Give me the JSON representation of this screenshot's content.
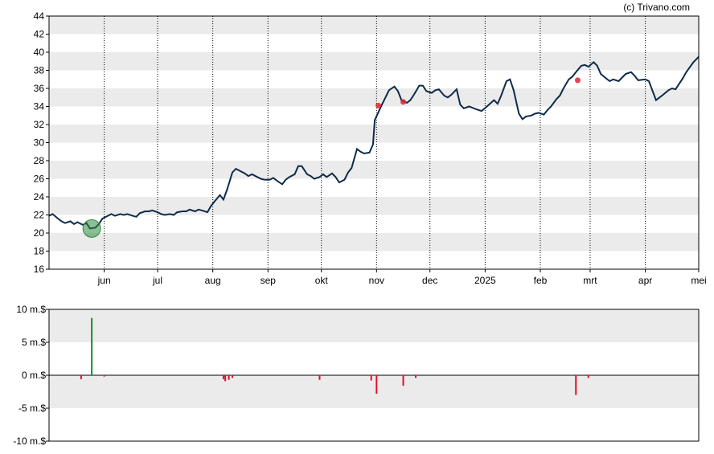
{
  "credit": "(c) Trivano.com",
  "colors": {
    "price_line": "#0d2b4a",
    "band": "#ebebeb",
    "gridline": "#000000",
    "buy_marker": "#2e8b3e",
    "sell_marker": "#e8202e",
    "positive_bar": "#1a8a2a",
    "negative_bar": "#e0102a"
  },
  "chart_data": [
    {
      "type": "line",
      "ylim": [
        16,
        44
      ],
      "y_ticks": [
        "16",
        "18",
        "20",
        "22",
        "24",
        "26",
        "28",
        "30",
        "32",
        "34",
        "36",
        "38",
        "40",
        "42",
        "44"
      ],
      "x_ticks": [
        {
          "label": "jun",
          "date": "2024-06-01"
        },
        {
          "label": "jul",
          "date": "2024-07-01"
        },
        {
          "label": "aug",
          "date": "2024-08-01"
        },
        {
          "label": "sep",
          "date": "2024-09-01"
        },
        {
          "label": "okt",
          "date": "2024-10-01"
        },
        {
          "label": "nov",
          "date": "2024-11-01"
        },
        {
          "label": "dec",
          "date": "2024-12-01"
        },
        {
          "label": "2025",
          "date": "2025-01-01"
        },
        {
          "label": "feb",
          "date": "2025-02-01"
        },
        {
          "label": "mrt",
          "date": "2025-03-01"
        },
        {
          "label": "apr",
          "date": "2025-04-01"
        },
        {
          "label": "mei",
          "date": "2025-05-01"
        }
      ],
      "xlim": [
        "2024-05-01",
        "2025-05-01"
      ],
      "grid": true,
      "series": [
        {
          "points": [
            [
              "2024-05-01",
              21.9
            ],
            [
              "2024-05-03",
              22.1
            ],
            [
              "2024-05-06",
              21.6
            ],
            [
              "2024-05-08",
              21.3
            ],
            [
              "2024-05-10",
              21.1
            ],
            [
              "2024-05-13",
              21.3
            ],
            [
              "2024-05-15",
              21.0
            ],
            [
              "2024-05-17",
              21.2
            ],
            [
              "2024-05-20",
              20.9
            ],
            [
              "2024-05-22",
              21.1
            ],
            [
              "2024-05-24",
              20.5
            ],
            [
              "2024-05-27",
              20.6
            ],
            [
              "2024-05-29",
              21.0
            ],
            [
              "2024-05-31",
              21.6
            ],
            [
              "2024-06-03",
              21.9
            ],
            [
              "2024-06-05",
              22.1
            ],
            [
              "2024-06-07",
              21.9
            ],
            [
              "2024-06-10",
              22.1
            ],
            [
              "2024-06-12",
              22.0
            ],
            [
              "2024-06-14",
              22.1
            ],
            [
              "2024-06-17",
              21.9
            ],
            [
              "2024-06-19",
              21.8
            ],
            [
              "2024-06-21",
              22.2
            ],
            [
              "2024-06-24",
              22.4
            ],
            [
              "2024-06-26",
              22.4
            ],
            [
              "2024-06-28",
              22.5
            ],
            [
              "2024-07-01",
              22.3
            ],
            [
              "2024-07-03",
              22.1
            ],
            [
              "2024-07-05",
              22.0
            ],
            [
              "2024-07-08",
              22.1
            ],
            [
              "2024-07-10",
              22.0
            ],
            [
              "2024-07-12",
              22.3
            ],
            [
              "2024-07-15",
              22.4
            ],
            [
              "2024-07-17",
              22.4
            ],
            [
              "2024-07-19",
              22.6
            ],
            [
              "2024-07-22",
              22.4
            ],
            [
              "2024-07-24",
              22.6
            ],
            [
              "2024-07-26",
              22.5
            ],
            [
              "2024-07-29",
              22.3
            ],
            [
              "2024-07-31",
              23.0
            ],
            [
              "2024-08-02",
              23.5
            ],
            [
              "2024-08-05",
              24.2
            ],
            [
              "2024-08-07",
              23.7
            ],
            [
              "2024-08-09",
              24.8
            ],
            [
              "2024-08-12",
              26.7
            ],
            [
              "2024-08-14",
              27.1
            ],
            [
              "2024-08-16",
              26.9
            ],
            [
              "2024-08-19",
              26.6
            ],
            [
              "2024-08-21",
              26.3
            ],
            [
              "2024-08-23",
              26.5
            ],
            [
              "2024-08-26",
              26.2
            ],
            [
              "2024-08-28",
              26.0
            ],
            [
              "2024-08-30",
              25.9
            ],
            [
              "2024-09-02",
              25.9
            ],
            [
              "2024-09-04",
              26.1
            ],
            [
              "2024-09-06",
              25.8
            ],
            [
              "2024-09-09",
              25.4
            ],
            [
              "2024-09-11",
              25.9
            ],
            [
              "2024-09-13",
              26.2
            ],
            [
              "2024-09-16",
              26.5
            ],
            [
              "2024-09-18",
              27.4
            ],
            [
              "2024-09-20",
              27.4
            ],
            [
              "2024-09-23",
              26.5
            ],
            [
              "2024-09-25",
              26.3
            ],
            [
              "2024-09-27",
              26.0
            ],
            [
              "2024-09-30",
              26.2
            ],
            [
              "2024-10-02",
              26.5
            ],
            [
              "2024-10-04",
              26.2
            ],
            [
              "2024-10-07",
              26.6
            ],
            [
              "2024-10-09",
              26.2
            ],
            [
              "2024-10-11",
              25.6
            ],
            [
              "2024-10-14",
              25.9
            ],
            [
              "2024-10-16",
              26.7
            ],
            [
              "2024-10-18",
              27.2
            ],
            [
              "2024-10-21",
              29.3
            ],
            [
              "2024-10-23",
              29.0
            ],
            [
              "2024-10-25",
              28.8
            ],
            [
              "2024-10-28",
              28.9
            ],
            [
              "2024-10-30",
              29.8
            ],
            [
              "2024-10-31",
              32.5
            ],
            [
              "2024-11-04",
              34.2
            ],
            [
              "2024-11-06",
              35.0
            ],
            [
              "2024-11-08",
              35.8
            ],
            [
              "2024-11-11",
              36.2
            ],
            [
              "2024-11-13",
              35.7
            ],
            [
              "2024-11-15",
              34.7
            ],
            [
              "2024-11-18",
              34.4
            ],
            [
              "2024-11-20",
              34.7
            ],
            [
              "2024-11-22",
              35.3
            ],
            [
              "2024-11-25",
              36.3
            ],
            [
              "2024-11-27",
              36.3
            ],
            [
              "2024-11-29",
              35.7
            ],
            [
              "2024-12-02",
              35.5
            ],
            [
              "2024-12-04",
              35.8
            ],
            [
              "2024-12-06",
              35.9
            ],
            [
              "2024-12-09",
              35.2
            ],
            [
              "2024-12-11",
              35.0
            ],
            [
              "2024-12-13",
              35.3
            ],
            [
              "2024-12-16",
              35.9
            ],
            [
              "2024-12-18",
              34.2
            ],
            [
              "2024-12-20",
              33.8
            ],
            [
              "2024-12-23",
              34.0
            ],
            [
              "2024-12-27",
              33.7
            ],
            [
              "2024-12-30",
              33.5
            ],
            [
              "2025-01-02",
              34.0
            ],
            [
              "2025-01-06",
              34.7
            ],
            [
              "2025-01-08",
              34.3
            ],
            [
              "2025-01-10",
              35.2
            ],
            [
              "2025-01-13",
              36.8
            ],
            [
              "2025-01-15",
              37.0
            ],
            [
              "2025-01-17",
              35.8
            ],
            [
              "2025-01-20",
              33.2
            ],
            [
              "2025-01-22",
              32.6
            ],
            [
              "2025-01-24",
              32.9
            ],
            [
              "2025-01-27",
              33.0
            ],
            [
              "2025-01-29",
              33.2
            ],
            [
              "2025-01-31",
              33.3
            ],
            [
              "2025-02-03",
              33.1
            ],
            [
              "2025-02-05",
              33.6
            ],
            [
              "2025-02-07",
              34.0
            ],
            [
              "2025-02-10",
              34.8
            ],
            [
              "2025-02-12",
              35.2
            ],
            [
              "2025-02-14",
              36.0
            ],
            [
              "2025-02-17",
              37.0
            ],
            [
              "2025-02-19",
              37.3
            ],
            [
              "2025-02-21",
              37.8
            ],
            [
              "2025-02-24",
              38.5
            ],
            [
              "2025-02-26",
              38.6
            ],
            [
              "2025-02-28",
              38.4
            ],
            [
              "2025-03-03",
              38.9
            ],
            [
              "2025-03-05",
              38.5
            ],
            [
              "2025-03-07",
              37.6
            ],
            [
              "2025-03-10",
              37.1
            ],
            [
              "2025-03-12",
              36.8
            ],
            [
              "2025-03-14",
              37.0
            ],
            [
              "2025-03-17",
              36.8
            ],
            [
              "2025-03-19",
              37.2
            ],
            [
              "2025-03-21",
              37.6
            ],
            [
              "2025-03-24",
              37.8
            ],
            [
              "2025-03-26",
              37.4
            ],
            [
              "2025-03-28",
              36.9
            ],
            [
              "2025-04-01",
              37.0
            ],
            [
              "2025-04-03",
              36.8
            ],
            [
              "2025-04-07",
              34.7
            ],
            [
              "2025-04-09",
              35.0
            ],
            [
              "2025-04-11",
              35.3
            ],
            [
              "2025-04-14",
              35.8
            ],
            [
              "2025-04-16",
              36.0
            ],
            [
              "2025-04-18",
              35.9
            ],
            [
              "2025-04-22",
              37.1
            ],
            [
              "2025-04-24",
              37.8
            ],
            [
              "2025-04-28",
              38.9
            ],
            [
              "2025-04-30",
              39.3
            ],
            [
              "2025-05-01",
              39.5
            ]
          ]
        }
      ],
      "markers": [
        {
          "type": "buy",
          "date": "2024-05-25",
          "value": 20.5
        },
        {
          "type": "sell",
          "date": "2024-11-02",
          "value": 34.1
        },
        {
          "type": "sell",
          "date": "2024-11-16",
          "value": 34.5
        },
        {
          "type": "sell",
          "date": "2025-02-22",
          "value": 36.9
        }
      ]
    },
    {
      "type": "bar",
      "ylim": [
        -10,
        10
      ],
      "y_ticks": [
        "10 m.$",
        "5 m.$",
        "0 m.$",
        "-5 m.$",
        "-10 m.$"
      ],
      "y_tick_values": [
        10,
        5,
        0,
        -5,
        -10
      ],
      "grid": true,
      "bars": [
        {
          "date": "2024-05-19",
          "value": -0.6
        },
        {
          "date": "2024-05-25",
          "value": 8.7
        },
        {
          "date": "2024-06-01",
          "value": -0.2
        },
        {
          "date": "2024-08-07",
          "value": -0.6
        },
        {
          "date": "2024-08-08",
          "value": -0.9
        },
        {
          "date": "2024-08-10",
          "value": -0.7
        },
        {
          "date": "2024-08-12",
          "value": -0.4
        },
        {
          "date": "2024-09-30",
          "value": -0.7
        },
        {
          "date": "2024-10-29",
          "value": -0.8
        },
        {
          "date": "2024-11-01",
          "value": -2.8
        },
        {
          "date": "2024-11-16",
          "value": -1.6
        },
        {
          "date": "2024-11-23",
          "value": -0.4
        },
        {
          "date": "2025-02-21",
          "value": -3.0
        },
        {
          "date": "2025-02-28",
          "value": -0.4
        }
      ]
    }
  ]
}
